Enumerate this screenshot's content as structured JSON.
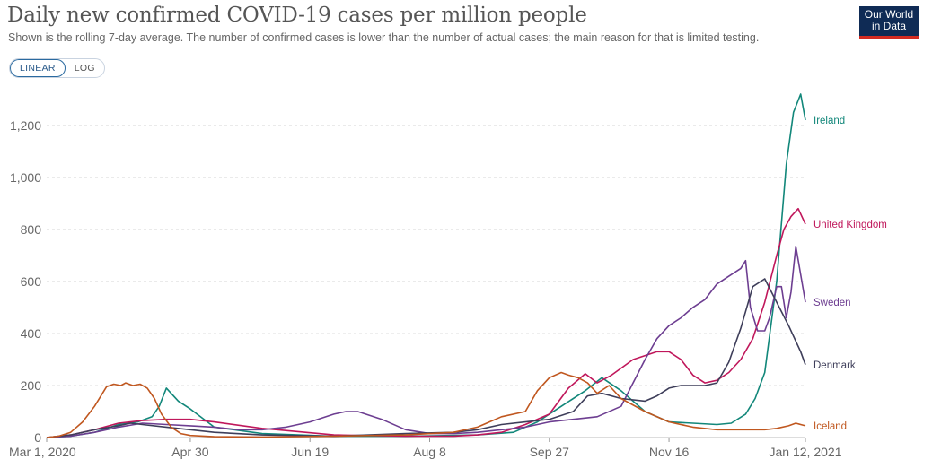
{
  "header": {
    "title": "Daily new confirmed COVID-19 cases per million people",
    "subtitle": "Shown is the rolling 7-day average. The number of confirmed cases is lower than the number of actual cases; the main reason for that is limited testing.",
    "logo_line1": "Our World",
    "logo_line2": "in Data"
  },
  "controls": {
    "linear_label": "LINEAR",
    "log_label": "LOG",
    "selected": "LINEAR"
  },
  "chart_data": {
    "type": "line",
    "title": "Daily new confirmed COVID-19 cases per million people",
    "xlabel": "",
    "ylabel": "",
    "x_unit": "days since Mar 1, 2020",
    "xlim": [
      0,
      317
    ],
    "ylim": [
      0,
      1320
    ],
    "yticks": [
      0,
      200,
      400,
      600,
      800,
      1000,
      1200
    ],
    "ytick_labels": [
      "0",
      "200",
      "400",
      "600",
      "800",
      "1,000",
      "1,200"
    ],
    "xticks": [
      0,
      60,
      110,
      160,
      210,
      260,
      317
    ],
    "xtick_labels": [
      "Mar 1, 2020",
      "Apr 30",
      "Jun 19",
      "Aug 8",
      "Sep 27",
      "Nov 16",
      "Jan 12, 2021"
    ],
    "grid": true,
    "series": [
      {
        "name": "Ireland",
        "color": "#12877a",
        "x": [
          0,
          10,
          20,
          30,
          38,
          44,
          47,
          50,
          55,
          60,
          70,
          90,
          120,
          150,
          180,
          195,
          205,
          215,
          225,
          232,
          240,
          250,
          260,
          270,
          280,
          286,
          292,
          296,
          300,
          305,
          309,
          312,
          315,
          317
        ],
        "y": [
          0,
          5,
          20,
          50,
          60,
          80,
          120,
          190,
          140,
          110,
          40,
          15,
          5,
          5,
          10,
          20,
          60,
          120,
          180,
          230,
          180,
          100,
          60,
          55,
          50,
          55,
          90,
          150,
          250,
          600,
          1050,
          1250,
          1320,
          1220
        ]
      },
      {
        "name": "United Kingdom",
        "color": "#c0175b",
        "x": [
          0,
          10,
          20,
          30,
          40,
          50,
          60,
          70,
          90,
          120,
          150,
          170,
          180,
          190,
          200,
          210,
          218,
          225,
          230,
          236,
          245,
          255,
          260,
          265,
          270,
          275,
          280,
          285,
          290,
          295,
          300,
          305,
          308,
          311,
          314,
          317
        ],
        "y": [
          0,
          10,
          30,
          55,
          65,
          70,
          70,
          60,
          35,
          10,
          5,
          5,
          10,
          20,
          50,
          90,
          190,
          245,
          210,
          240,
          300,
          330,
          330,
          300,
          240,
          210,
          220,
          250,
          300,
          380,
          520,
          700,
          800,
          850,
          880,
          820
        ]
      },
      {
        "name": "Sweden",
        "color": "#6d3e91",
        "x": [
          0,
          10,
          20,
          30,
          40,
          50,
          60,
          70,
          80,
          90,
          100,
          110,
          120,
          125,
          130,
          140,
          150,
          160,
          170,
          180,
          190,
          200,
          210,
          220,
          230,
          240,
          250,
          255,
          260,
          265,
          270,
          275,
          280,
          285,
          290,
          292,
          294,
          297,
          300,
          302,
          305,
          307,
          309,
          311,
          313,
          317
        ],
        "y": [
          0,
          5,
          20,
          40,
          55,
          50,
          45,
          40,
          30,
          30,
          40,
          60,
          90,
          100,
          100,
          70,
          30,
          15,
          15,
          20,
          30,
          40,
          60,
          70,
          80,
          120,
          300,
          380,
          430,
          460,
          500,
          530,
          590,
          620,
          650,
          680,
          500,
          410,
          410,
          460,
          580,
          580,
          460,
          560,
          735,
          520
        ]
      },
      {
        "name": "Denmark",
        "color": "#3e3e5a",
        "x": [
          0,
          10,
          20,
          30,
          35,
          40,
          50,
          60,
          70,
          90,
          120,
          150,
          170,
          180,
          190,
          200,
          210,
          220,
          226,
          232,
          240,
          250,
          255,
          260,
          265,
          270,
          275,
          280,
          285,
          290,
          295,
          300,
          305,
          310,
          315,
          317
        ],
        "y": [
          0,
          10,
          30,
          45,
          55,
          50,
          40,
          30,
          20,
          10,
          5,
          15,
          20,
          30,
          50,
          60,
          70,
          100,
          160,
          170,
          150,
          140,
          160,
          190,
          200,
          200,
          200,
          210,
          290,
          420,
          580,
          610,
          520,
          430,
          330,
          280
        ]
      },
      {
        "name": "Iceland",
        "color": "#c0571f",
        "x": [
          0,
          5,
          10,
          15,
          20,
          25,
          28,
          31,
          33,
          36,
          39,
          42,
          45,
          48,
          52,
          56,
          60,
          70,
          90,
          120,
          150,
          170,
          180,
          185,
          190,
          200,
          205,
          210,
          215,
          218,
          222,
          226,
          230,
          235,
          240,
          250,
          260,
          270,
          280,
          290,
          300,
          305,
          310,
          313,
          315,
          317
        ],
        "y": [
          0,
          5,
          20,
          60,
          120,
          195,
          205,
          200,
          210,
          200,
          205,
          190,
          150,
          90,
          40,
          15,
          8,
          3,
          2,
          5,
          10,
          20,
          40,
          60,
          80,
          100,
          180,
          230,
          250,
          240,
          230,
          210,
          170,
          200,
          150,
          100,
          60,
          40,
          30,
          30,
          30,
          35,
          45,
          55,
          50,
          45
        ]
      }
    ]
  }
}
